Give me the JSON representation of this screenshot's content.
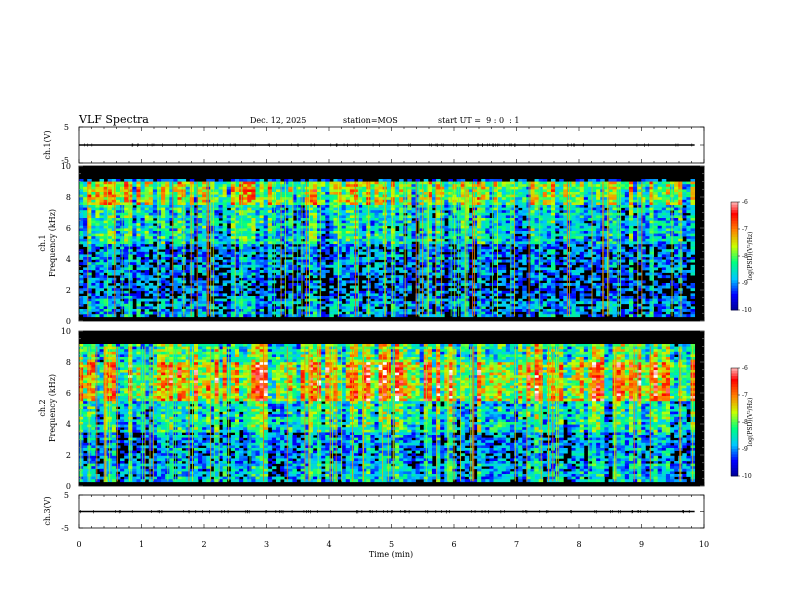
{
  "header": {
    "title": "VLF Spectra",
    "date": "Dec. 12, 2025",
    "station": "station=MOS",
    "start": "start UT =  9 : 0  : 1"
  },
  "chart_data": [
    {
      "id": "ch1-voltage",
      "type": "line",
      "ylabel": "ch.1(V)",
      "ylim": [
        -5,
        5
      ],
      "yticks": [
        5,
        -5
      ],
      "xlim": [
        0,
        10
      ],
      "trace_level": 0,
      "trace_end": 9.85
    },
    {
      "id": "ch1-spectrogram",
      "type": "heatmap",
      "ylabel_top": "ch.1",
      "ylabel": "Frequency (kHz)",
      "ylim": [
        0,
        10
      ],
      "yticks": [
        0,
        2,
        4,
        6,
        8,
        10
      ],
      "xlim": [
        0,
        10
      ],
      "data_end": 9.85,
      "colorbar": {
        "label": "log(PSD)(V²/Hz)",
        "range": [
          -10,
          -6
        ],
        "ticks": [
          -6,
          -7,
          -8,
          -9,
          -10
        ]
      }
    },
    {
      "id": "ch2-spectrogram",
      "type": "heatmap",
      "ylabel_top": "ch.2",
      "ylabel": "Frequency (kHz)",
      "ylim": [
        0,
        10
      ],
      "yticks": [
        0,
        2,
        4,
        6,
        8,
        10
      ],
      "xlim": [
        0,
        10
      ],
      "data_end": 9.85,
      "colorbar": {
        "label": "log(PSD)(V²/Hz)",
        "range": [
          -10,
          -6
        ],
        "ticks": [
          -6,
          -7,
          -8,
          -9,
          -10
        ]
      }
    },
    {
      "id": "ch3-voltage",
      "type": "line",
      "ylabel": "ch.3(V)",
      "ylim": [
        -5,
        5
      ],
      "yticks": [
        5,
        -5
      ],
      "xlim": [
        0,
        10
      ],
      "trace_level": 0,
      "trace_end": 9.85,
      "xlabel": "Time (min)",
      "xticks": [
        0,
        1,
        2,
        3,
        4,
        5,
        6,
        7,
        8,
        9,
        10
      ]
    }
  ],
  "colors": {
    "background": "#000000",
    "colormap": [
      "#000090",
      "#0000ff",
      "#00c8ff",
      "#00ff80",
      "#c8ff00",
      "#ff8000",
      "#ff0000",
      "#ffffff"
    ]
  }
}
